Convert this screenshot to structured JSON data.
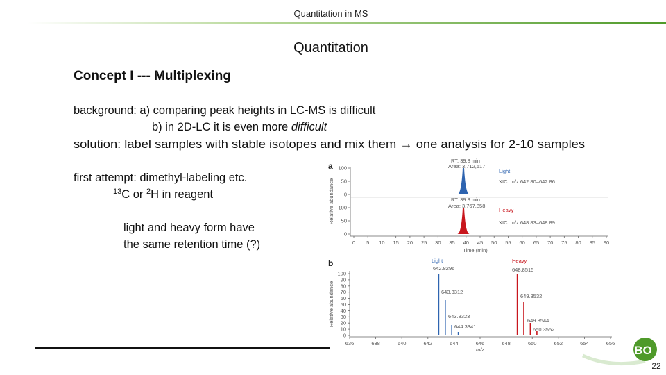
{
  "header": {
    "title": "Quantitation in MS"
  },
  "heading": "Quantitation",
  "subheading": "Concept I --- Multiplexing",
  "body": {
    "background_a": "background:  a) comparing peak heights in LC-MS is difficult",
    "background_b": {
      "text": "b) in 2D-LC it is even more ",
      "italic": "difficult"
    },
    "solution": {
      "before": "solution: label samples with stable isotopes and mix them ",
      "arrow": "→",
      "after": " one analysis for 2-10 samples"
    },
    "first_attempt": "first attempt: dimethyl-labeling etc.",
    "reagent": {
      "sup1": "13",
      "text1": "C or ",
      "sup2": "2",
      "text2": "H in reagent"
    },
    "retention": [
      "light and heavy form have",
      "the same retention time (?)"
    ]
  },
  "figure": {
    "panel_a": {
      "label": "a",
      "y_label": "Relative abundance",
      "yticks": [
        0,
        50,
        100
      ],
      "xticks": [
        0,
        5,
        10,
        15,
        20,
        25,
        30,
        35,
        40,
        45,
        50,
        55,
        60,
        65,
        70,
        75,
        80,
        85,
        90
      ],
      "x_label": "Time (min)",
      "light": {
        "rt": "RT: 39.8 min",
        "area": "Area: 3,712,517",
        "name": "Light",
        "xic": "XIC: m/z 642.80–642.86"
      },
      "heavy": {
        "rt": "RT: 39.8 min",
        "area": "Area: 3,767,858",
        "name": "Heavy",
        "xic": "XIC: m/z 648.83–648.89"
      }
    },
    "panel_b": {
      "label": "b",
      "y_label": "Relative abundance",
      "yticks": [
        0,
        10,
        20,
        30,
        40,
        50,
        60,
        70,
        80,
        90,
        100
      ],
      "xticks": [
        636,
        638,
        640,
        642,
        644,
        646,
        648,
        650,
        652,
        654,
        656
      ],
      "x_label": "m/z",
      "light": {
        "name": "Light",
        "peaks": [
          "642.8296",
          "643.3312",
          "643.8323",
          "644.3341"
        ]
      },
      "heavy": {
        "name": "Heavy",
        "peaks": [
          "648.8515",
          "649.3532",
          "649.8544",
          "650.3552"
        ]
      }
    }
  },
  "logo": "BO",
  "page_number": "22"
}
